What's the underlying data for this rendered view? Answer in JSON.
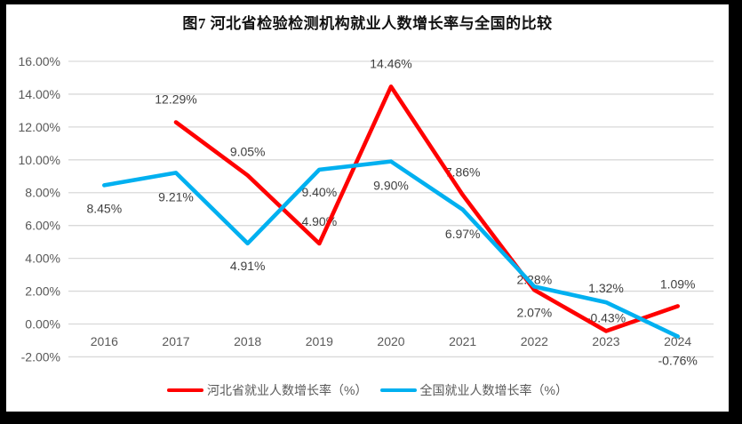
{
  "chart_data": {
    "type": "line",
    "title": "图7 河北省检验检测机构就业人数增长率与全国的比较",
    "categories": [
      "2016",
      "2017",
      "2018",
      "2019",
      "2020",
      "2021",
      "2022",
      "2023",
      "2024"
    ],
    "y_axis": {
      "min": -2,
      "max": 16,
      "step": 2,
      "tick_labels": [
        "16.00%",
        "14.00%",
        "12.00%",
        "10.00%",
        "8.00%",
        "6.00%",
        "4.00%",
        "2.00%",
        "0.00%",
        "-2.00%"
      ],
      "format": "percent"
    },
    "grid": true,
    "legend_position": "bottom",
    "colors": {
      "gridline": "#D9D9D9",
      "axis_text": "#595959",
      "data_label_text": "#404040"
    },
    "series": [
      {
        "name": "河北省就业人数增长率（%）",
        "color": "#FF0000",
        "values": [
          null,
          12.29,
          9.05,
          4.9,
          14.46,
          7.86,
          2.07,
          -0.43,
          1.09
        ],
        "point_labels": [
          "",
          "12.29%",
          "9.05%",
          "4.90%",
          "14.46%",
          "7.86%",
          "2.07%",
          "-0.43%",
          "1.09%"
        ],
        "label_dy": [
          0,
          -26,
          -27,
          -25,
          -26,
          -26,
          25,
          -15,
          -25
        ]
      },
      {
        "name": "全国就业人数增长率（%）",
        "color": "#00B0F0",
        "values": [
          8.45,
          9.21,
          4.91,
          9.4,
          9.9,
          6.97,
          2.28,
          1.32,
          -0.76
        ],
        "point_labels": [
          "8.45%",
          "9.21%",
          "4.91%",
          "9.40%",
          "9.90%",
          "6.97%",
          "2.28%",
          "1.32%",
          "-0.76%"
        ],
        "label_dy": [
          26,
          27,
          25,
          25,
          27,
          27,
          -8,
          -16,
          27
        ]
      }
    ]
  }
}
